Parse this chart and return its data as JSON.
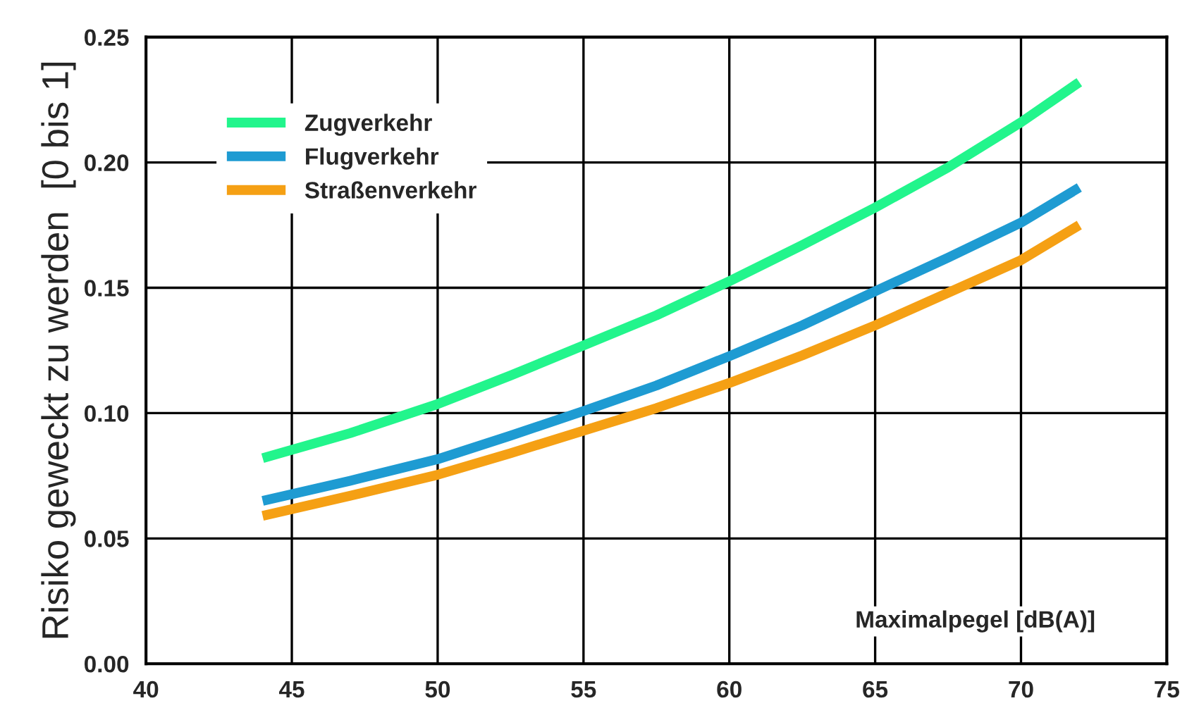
{
  "chart_data": {
    "type": "line",
    "xlabel": "Maximalpegel [dB(A)]",
    "ylabel": "Risiko geweckt zu werden  [0 bis 1]",
    "series": [
      {
        "name": "Zugverkehr",
        "color": "#22f58c",
        "x": [
          44,
          47,
          50,
          52.5,
          55,
          57.5,
          60,
          62.5,
          65,
          67.5,
          70,
          72
        ],
        "values": [
          0.082,
          0.092,
          0.1036,
          0.115,
          0.127,
          0.139,
          0.1526,
          0.167,
          0.182,
          0.198,
          0.216,
          0.232
        ]
      },
      {
        "name": "Flugverkehr",
        "color": "#1e9bd2",
        "x": [
          44,
          47,
          50,
          52.5,
          55,
          57.5,
          60,
          62.5,
          65,
          67.5,
          70,
          72
        ],
        "values": [
          0.065,
          0.073,
          0.0816,
          0.091,
          0.1008,
          0.111,
          0.1227,
          0.135,
          0.1486,
          0.162,
          0.176,
          0.19
        ]
      },
      {
        "name": "Straßenverkehr",
        "color": "#f5a014",
        "x": [
          44,
          47,
          50,
          52.5,
          55,
          57.5,
          60,
          62.5,
          65,
          67.5,
          70,
          72
        ],
        "values": [
          0.059,
          0.067,
          0.0754,
          0.084,
          0.093,
          0.102,
          0.112,
          0.123,
          0.135,
          0.148,
          0.161,
          0.175
        ]
      }
    ],
    "xlim": [
      40,
      75
    ],
    "xticks": [
      40,
      45,
      50,
      55,
      60,
      65,
      70,
      75
    ],
    "ylim": [
      0,
      0.25
    ],
    "yticks": [
      {
        "value": 0,
        "label": "0.00"
      },
      {
        "value": 0.05,
        "label": "0.05"
      },
      {
        "value": 0.1,
        "label": "0.10"
      },
      {
        "value": 0.15,
        "label": "0.15"
      },
      {
        "value": 0.2,
        "label": "0.20"
      },
      {
        "value": 0.25,
        "label": "0.25"
      }
    ],
    "grid": true,
    "legend": "top left",
    "line_style": "solid",
    "marker": "none"
  }
}
